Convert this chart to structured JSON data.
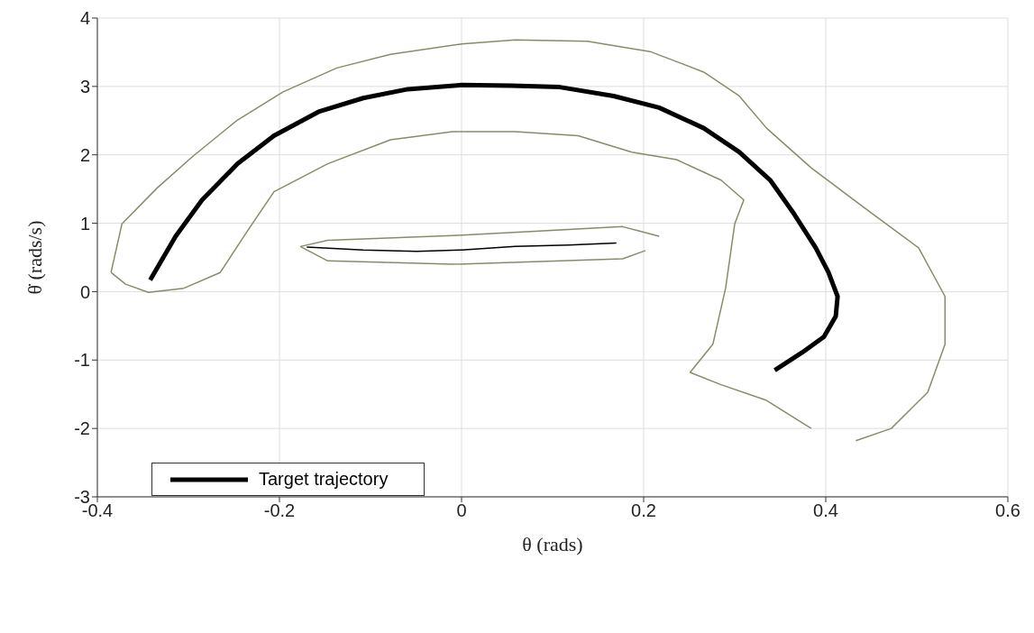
{
  "chart_data": {
    "type": "line",
    "xlabel": "θ (rads)",
    "ylabel": "θ̇ (rads/s)",
    "xlim": [
      -0.4,
      0.6
    ],
    "xticks": [
      -0.4,
      -0.2,
      0,
      0.2,
      0.4,
      0.6
    ],
    "ylim": [
      -3,
      4
    ],
    "yticks": [
      -3,
      -2,
      -1,
      0,
      1,
      2,
      3,
      4
    ],
    "grid": true,
    "legend": "bottom left",
    "marker": "none",
    "line_style": "solid",
    "series": [
      {
        "color": "#8a8a6a",
        "x": [
          -0.385,
          -0.373,
          -0.334,
          -0.295,
          -0.246,
          -0.196,
          -0.137,
          -0.078,
          0.0,
          0.059,
          0.138,
          0.207,
          0.266,
          0.305,
          0.335,
          0.384,
          0.443,
          0.502,
          0.531,
          0.531,
          0.512,
          0.472,
          0.433
        ],
        "values": [
          0.28,
          0.99,
          1.52,
          1.98,
          2.51,
          2.92,
          3.27,
          3.47,
          3.62,
          3.68,
          3.66,
          3.51,
          3.21,
          2.86,
          2.39,
          1.81,
          1.22,
          0.64,
          -0.07,
          -0.77,
          -1.47,
          -2.0,
          -2.18
        ]
      },
      {
        "color": "#8a8a6a",
        "x": [
          0.384,
          0.335,
          0.285,
          0.251,
          0.276,
          0.29,
          0.3,
          0.31,
          0.285,
          0.236,
          0.187,
          0.128,
          0.059,
          -0.01,
          -0.078,
          -0.147,
          -0.206,
          -0.236,
          -0.265,
          -0.305,
          -0.344,
          -0.369,
          -0.385
        ],
        "values": [
          -2.0,
          -1.59,
          -1.36,
          -1.18,
          -0.77,
          0.05,
          0.99,
          1.34,
          1.63,
          1.93,
          2.04,
          2.28,
          2.34,
          2.34,
          2.22,
          1.87,
          1.46,
          0.87,
          0.28,
          0.05,
          -0.01,
          0.11,
          0.28
        ]
      },
      {
        "color": "#8a8a6a",
        "x": [
          -0.177,
          -0.147,
          -0.01,
          0.177,
          0.217
        ],
        "values": [
          0.66,
          0.75,
          0.82,
          0.95,
          0.81
        ]
      },
      {
        "color": "#8a8a6a",
        "x": [
          0.202,
          0.177,
          -0.01,
          -0.147,
          -0.177
        ],
        "values": [
          0.6,
          0.48,
          0.4,
          0.45,
          0.66
        ]
      },
      {
        "name": "Target trajectory",
        "color": "#000000",
        "x": [
          -0.342,
          -0.314,
          -0.285,
          -0.246,
          -0.206,
          -0.157,
          -0.108,
          -0.059,
          0.0,
          0.054,
          0.108,
          0.167,
          0.217,
          0.266,
          0.305,
          0.339,
          0.364,
          0.389,
          0.403,
          0.413,
          0.411,
          0.398,
          0.374,
          0.344
        ],
        "values": [
          0.17,
          0.81,
          1.34,
          1.87,
          2.28,
          2.63,
          2.83,
          2.96,
          3.02,
          3.01,
          2.99,
          2.86,
          2.69,
          2.39,
          2.04,
          1.63,
          1.16,
          0.64,
          0.28,
          -0.07,
          -0.36,
          -0.66,
          -0.89,
          -1.15
        ]
      },
      {
        "color": "#000000",
        "x": [
          -0.17,
          -0.108,
          -0.049,
          0.0,
          0.059,
          0.118,
          0.17
        ],
        "values": [
          0.65,
          0.61,
          0.59,
          0.61,
          0.66,
          0.68,
          0.71
        ]
      }
    ]
  }
}
